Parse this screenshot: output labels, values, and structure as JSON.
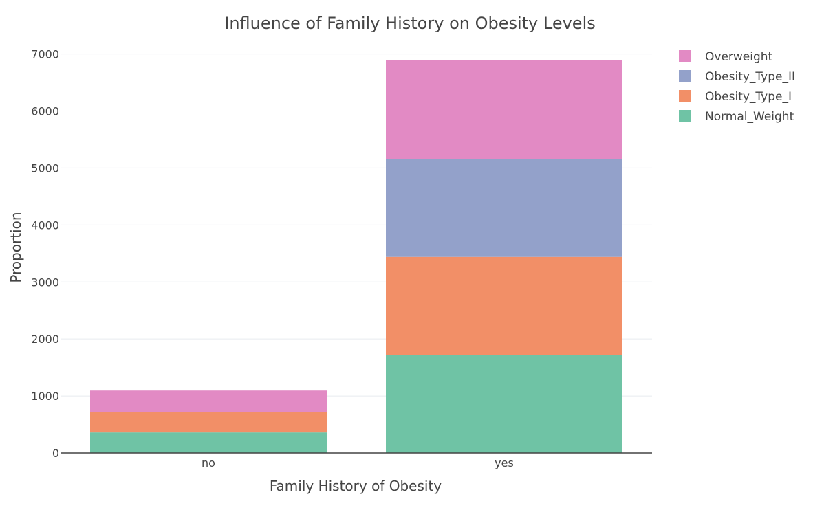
{
  "chart_data": {
    "type": "bar",
    "stacked": true,
    "title": "Influence of Family History on Obesity Levels",
    "xlabel": "Family History of Obesity",
    "ylabel": "Proportion",
    "categories": [
      "no",
      "yes"
    ],
    "ylim": [
      0,
      7200
    ],
    "yticks": [
      0,
      1000,
      2000,
      3000,
      4000,
      5000,
      6000,
      7000
    ],
    "grid": true,
    "legend_position": "top-right",
    "series": [
      {
        "name": "Normal_Weight",
        "color": "#6fc3a5",
        "values": [
          360,
          1720
        ]
      },
      {
        "name": "Obesity_Type_I",
        "color": "#f28f67",
        "values": [
          360,
          1720
        ]
      },
      {
        "name": "Obesity_Type_II",
        "color": "#93a1ca",
        "values": [
          0,
          1720
        ]
      },
      {
        "name": "Overweight",
        "color": "#e28ac4",
        "values": [
          375,
          1730
        ]
      }
    ],
    "legend_order": [
      "Overweight",
      "Obesity_Type_II",
      "Obesity_Type_I",
      "Normal_Weight"
    ]
  }
}
